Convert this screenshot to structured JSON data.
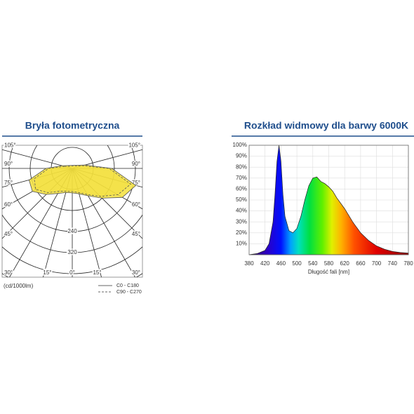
{
  "chart_data": [
    {
      "type": "polar",
      "title": "Bryła fotometryczna",
      "unit_label": "(cd/1000lm)",
      "theta": [
        -105,
        -90,
        -75,
        -60,
        -45,
        -30,
        -15,
        0,
        15,
        30,
        45,
        60,
        75,
        90,
        105
      ],
      "series": [
        {
          "name": "C0 - C180",
          "color": "#f3e03c",
          "line_style": "solid",
          "values": [
            40,
            100,
            170,
            175,
            140,
            110,
            95,
            93,
            100,
            120,
            160,
            220,
            250,
            150,
            50
          ]
        },
        {
          "name": "C90 - C270",
          "color": "#f3e03c",
          "line_style": "dashed",
          "values": [
            30,
            90,
            150,
            160,
            130,
            100,
            90,
            88,
            95,
            115,
            150,
            200,
            230,
            140,
            40
          ]
        }
      ],
      "thetaticks": [
        {
          "value": -105,
          "label": "105°"
        },
        {
          "value": -90,
          "label": "90°"
        },
        {
          "value": -75,
          "label": "75°"
        },
        {
          "value": -60,
          "label": "60°"
        },
        {
          "value": -45,
          "label": "45°"
        },
        {
          "value": -30,
          "label": "30°"
        },
        {
          "value": -15,
          "label": "15°"
        },
        {
          "value": 0,
          "label": "0°"
        },
        {
          "value": 15,
          "label": "15°"
        },
        {
          "value": 30,
          "label": "30°"
        },
        {
          "value": 45,
          "label": "45°"
        },
        {
          "value": 60,
          "label": "60°"
        },
        {
          "value": 75,
          "label": "75°"
        },
        {
          "value": 90,
          "label": "90°"
        },
        {
          "value": 105,
          "label": "105°"
        }
      ],
      "rticks": [
        {
          "value": 80,
          "label": null
        },
        {
          "value": 160,
          "label": null
        },
        240,
        320,
        {
          "value": 400,
          "label": null
        },
        {
          "value": 480,
          "label": null
        }
      ]
    },
    {
      "type": "spectrum",
      "title": "Rozkład widmowy dla barwy 6000K",
      "x_label": "Długość fali [nm]",
      "x": [
        380,
        400,
        420,
        430,
        440,
        445,
        450,
        455,
        460,
        465,
        470,
        480,
        490,
        500,
        510,
        520,
        530,
        540,
        550,
        560,
        570,
        580,
        590,
        600,
        620,
        640,
        660,
        680,
        700,
        720,
        740,
        760,
        780
      ],
      "values": [
        0,
        1,
        4,
        10,
        30,
        55,
        85,
        100,
        85,
        55,
        35,
        22,
        20,
        24,
        35,
        50,
        63,
        70,
        71,
        67,
        65,
        62,
        58,
        52,
        42,
        30,
        20,
        13,
        8,
        5,
        3,
        2,
        1.5
      ],
      "xlim": [
        380,
        780
      ],
      "ylim": [
        0,
        100
      ],
      "xticks": [
        380,
        420,
        460,
        500,
        540,
        580,
        620,
        660,
        700,
        740,
        780
      ],
      "yticks": [
        {
          "value": 10,
          "label": "10%"
        },
        {
          "value": 20,
          "label": "20%"
        },
        {
          "value": 30,
          "label": "30%"
        },
        {
          "value": 40,
          "label": "40%"
        },
        {
          "value": 50,
          "label": "50%"
        },
        {
          "value": 60,
          "label": "60%"
        },
        {
          "value": 70,
          "label": "70%"
        },
        {
          "value": 80,
          "label": "80%"
        },
        {
          "value": 90,
          "label": "90%"
        },
        {
          "value": 100,
          "label": "100%"
        }
      ],
      "grid": true
    }
  ]
}
